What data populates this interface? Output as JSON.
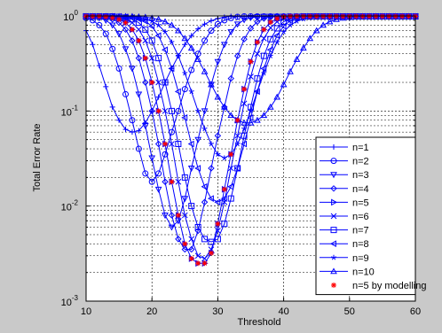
{
  "chart_data": {
    "type": "line",
    "title": "",
    "xlabel": "Threshold",
    "ylabel": "Total Error Rate",
    "xlim": [
      10,
      60
    ],
    "ylim": [
      0.001,
      1
    ],
    "yscale": "log",
    "grid": true,
    "legend_position": "bottom-right",
    "x_ticks": [
      10,
      20,
      30,
      40,
      50,
      60
    ],
    "x_tick_labels": [
      "10",
      "20",
      "30",
      "40",
      "50",
      "60"
    ],
    "y_ticks": [
      0.001,
      0.01,
      0.1,
      1
    ],
    "y_tick_labels": [
      {
        "base": "10",
        "exp": "-3"
      },
      {
        "base": "10",
        "exp": "-2"
      },
      {
        "base": "10",
        "exp": "-1"
      },
      {
        "base": "10",
        "exp": "0"
      }
    ],
    "x": [
      10,
      11,
      12,
      13,
      14,
      15,
      16,
      17,
      18,
      19,
      20,
      21,
      22,
      23,
      24,
      25,
      26,
      27,
      28,
      29,
      30,
      31,
      32,
      33,
      34,
      35,
      36,
      37,
      38,
      39,
      40,
      41,
      42,
      43,
      44,
      45,
      46,
      47,
      48,
      49,
      50,
      51,
      52,
      53,
      54,
      55,
      56,
      57,
      58,
      59,
      60
    ],
    "series": [
      {
        "name": "n=1",
        "marker": "plus",
        "color": "#0000ff",
        "values": [
          0.7,
          0.5,
          0.3,
          0.18,
          0.11,
          0.08,
          0.064,
          0.06,
          0.062,
          0.075,
          0.1,
          0.14,
          0.2,
          0.28,
          0.38,
          0.5,
          0.62,
          0.73,
          0.82,
          0.89,
          0.94,
          0.97,
          0.99,
          0.99,
          0.99,
          0.99,
          0.99,
          0.99,
          0.99,
          0.99,
          0.99,
          0.99,
          0.99,
          0.99,
          0.99,
          0.99,
          0.99,
          0.99,
          0.99,
          0.99,
          0.99,
          0.99,
          0.99,
          0.99,
          0.99,
          0.99,
          0.99,
          0.99,
          0.99,
          0.99,
          0.99
        ]
      },
      {
        "name": "n=2",
        "marker": "circle",
        "color": "#0000ff",
        "values": [
          0.95,
          0.9,
          0.8,
          0.65,
          0.45,
          0.28,
          0.15,
          0.08,
          0.04,
          0.022,
          0.018,
          0.022,
          0.035,
          0.06,
          0.1,
          0.17,
          0.27,
          0.4,
          0.55,
          0.7,
          0.82,
          0.9,
          0.95,
          0.98,
          0.99,
          0.99,
          0.99,
          0.99,
          0.99,
          0.99,
          0.99,
          0.99,
          0.99,
          0.99,
          0.99,
          0.99,
          0.99,
          0.99,
          0.99,
          0.99,
          0.99,
          0.99,
          0.99,
          0.99,
          0.99,
          0.99,
          0.99,
          0.99,
          0.99,
          0.99,
          0.99
        ]
      },
      {
        "name": "n=3",
        "marker": "triangle-down",
        "color": "#0000ff",
        "values": [
          0.99,
          0.98,
          0.95,
          0.9,
          0.8,
          0.65,
          0.45,
          0.28,
          0.15,
          0.07,
          0.032,
          0.015,
          0.008,
          0.006,
          0.007,
          0.012,
          0.025,
          0.05,
          0.1,
          0.19,
          0.33,
          0.5,
          0.68,
          0.82,
          0.91,
          0.96,
          0.98,
          0.99,
          0.99,
          0.99,
          0.99,
          0.99,
          0.99,
          0.99,
          0.99,
          0.99,
          0.99,
          0.99,
          0.99,
          0.99,
          0.99,
          0.99,
          0.99,
          0.99,
          0.99,
          0.99,
          0.99,
          0.99,
          0.99,
          0.99,
          0.99
        ]
      },
      {
        "name": "n=4",
        "marker": "diamond",
        "color": "#0000ff",
        "values": [
          0.99,
          0.99,
          0.98,
          0.96,
          0.92,
          0.85,
          0.72,
          0.55,
          0.36,
          0.2,
          0.1,
          0.045,
          0.018,
          0.008,
          0.0045,
          0.0035,
          0.0035,
          0.0055,
          0.011,
          0.025,
          0.055,
          0.11,
          0.22,
          0.38,
          0.57,
          0.74,
          0.87,
          0.94,
          0.98,
          0.99,
          0.99,
          0.99,
          0.99,
          0.99,
          0.99,
          0.99,
          0.99,
          0.99,
          0.99,
          0.99,
          0.99,
          0.99,
          0.99,
          0.99,
          0.99,
          0.99,
          0.99,
          0.99,
          0.99,
          0.99,
          0.99
        ]
      },
      {
        "name": "n=5",
        "marker": "triangle-right",
        "color": "#0000ff",
        "values": [
          0.99,
          0.99,
          0.99,
          0.98,
          0.96,
          0.92,
          0.85,
          0.72,
          0.55,
          0.36,
          0.2,
          0.1,
          0.045,
          0.018,
          0.008,
          0.004,
          0.0028,
          0.0025,
          0.0025,
          0.0032,
          0.0065,
          0.015,
          0.035,
          0.08,
          0.17,
          0.33,
          0.53,
          0.72,
          0.86,
          0.94,
          0.98,
          0.99,
          0.99,
          0.99,
          0.99,
          0.99,
          0.99,
          0.99,
          0.99,
          0.99,
          0.99,
          0.99,
          0.99,
          0.99,
          0.99,
          0.99,
          0.99,
          0.99,
          0.99,
          0.99,
          0.99
        ]
      },
      {
        "name": "n=6",
        "marker": "cross",
        "color": "#0000ff",
        "values": [
          0.99,
          0.99,
          0.99,
          0.99,
          0.98,
          0.96,
          0.92,
          0.85,
          0.72,
          0.55,
          0.36,
          0.2,
          0.1,
          0.045,
          0.018,
          0.008,
          0.0045,
          0.003,
          0.0028,
          0.0035,
          0.0055,
          0.011,
          0.025,
          0.055,
          0.12,
          0.23,
          0.4,
          0.58,
          0.75,
          0.87,
          0.94,
          0.98,
          0.99,
          0.99,
          0.99,
          0.99,
          0.99,
          0.99,
          0.99,
          0.99,
          0.99,
          0.99,
          0.99,
          0.99,
          0.99,
          0.99,
          0.99,
          0.99,
          0.99,
          0.99,
          0.99
        ]
      },
      {
        "name": "n=7",
        "marker": "square",
        "color": "#0000ff",
        "values": [
          0.99,
          0.99,
          0.99,
          0.99,
          0.99,
          0.98,
          0.96,
          0.92,
          0.85,
          0.72,
          0.55,
          0.36,
          0.2,
          0.1,
          0.045,
          0.02,
          0.01,
          0.006,
          0.0045,
          0.0042,
          0.0045,
          0.0065,
          0.012,
          0.025,
          0.055,
          0.11,
          0.22,
          0.38,
          0.57,
          0.74,
          0.87,
          0.94,
          0.98,
          0.99,
          0.99,
          0.99,
          0.99,
          0.99,
          0.99,
          0.99,
          0.99,
          0.99,
          0.99,
          0.99,
          0.99,
          0.99,
          0.99,
          0.99,
          0.99,
          0.99,
          0.99
        ]
      },
      {
        "name": "n=8",
        "marker": "triangle-left",
        "color": "#0000ff",
        "values": [
          0.99,
          0.99,
          0.99,
          0.99,
          0.99,
          0.99,
          0.98,
          0.96,
          0.93,
          0.88,
          0.78,
          0.62,
          0.44,
          0.28,
          0.16,
          0.085,
          0.045,
          0.025,
          0.016,
          0.012,
          0.011,
          0.012,
          0.016,
          0.025,
          0.045,
          0.085,
          0.16,
          0.28,
          0.44,
          0.62,
          0.78,
          0.89,
          0.95,
          0.98,
          0.99,
          0.99,
          0.99,
          0.99,
          0.99,
          0.99,
          0.99,
          0.99,
          0.99,
          0.99,
          0.99,
          0.99,
          0.99,
          0.99,
          0.99,
          0.99,
          0.99
        ]
      },
      {
        "name": "n=9",
        "marker": "star",
        "color": "#0000ff",
        "values": [
          0.99,
          0.99,
          0.99,
          0.99,
          0.99,
          0.99,
          0.99,
          0.98,
          0.96,
          0.93,
          0.88,
          0.8,
          0.68,
          0.53,
          0.38,
          0.25,
          0.16,
          0.1,
          0.065,
          0.045,
          0.035,
          0.032,
          0.035,
          0.045,
          0.065,
          0.1,
          0.16,
          0.25,
          0.38,
          0.53,
          0.68,
          0.8,
          0.88,
          0.93,
          0.96,
          0.98,
          0.99,
          0.99,
          0.99,
          0.99,
          0.99,
          0.99,
          0.99,
          0.99,
          0.99,
          0.99,
          0.99,
          0.99,
          0.99,
          0.99,
          0.99
        ]
      },
      {
        "name": "n=10",
        "marker": "triangle-up",
        "color": "#0000ff",
        "values": [
          0.99,
          0.99,
          0.99,
          0.99,
          0.99,
          0.99,
          0.99,
          0.99,
          0.98,
          0.97,
          0.95,
          0.92,
          0.87,
          0.8,
          0.7,
          0.58,
          0.46,
          0.35,
          0.26,
          0.19,
          0.14,
          0.11,
          0.09,
          0.08,
          0.075,
          0.075,
          0.08,
          0.09,
          0.11,
          0.14,
          0.19,
          0.26,
          0.35,
          0.46,
          0.58,
          0.7,
          0.8,
          0.87,
          0.92,
          0.95,
          0.97,
          0.98,
          0.99,
          0.99,
          0.99,
          0.99,
          0.99,
          0.99,
          0.99,
          0.99,
          0.99
        ]
      },
      {
        "name": "n=5 by modelling",
        "marker": "asterisk",
        "color": "#ff0000",
        "line": false,
        "values": [
          0.99,
          0.99,
          0.99,
          0.98,
          0.96,
          0.92,
          0.85,
          0.72,
          0.55,
          0.36,
          0.2,
          0.1,
          0.045,
          0.018,
          0.008,
          0.004,
          0.0028,
          0.0025,
          0.0025,
          0.0032,
          0.0065,
          0.015,
          0.035,
          0.08,
          0.17,
          0.33,
          0.53,
          0.72,
          0.86,
          0.94,
          0.98,
          0.99,
          0.99,
          0.99,
          0.99,
          0.99,
          0.99,
          0.99,
          0.99,
          0.99,
          0.99,
          0.99,
          0.99,
          0.99,
          0.99,
          0.99,
          0.99,
          0.99,
          0.99,
          0.99,
          0.99
        ]
      }
    ]
  }
}
